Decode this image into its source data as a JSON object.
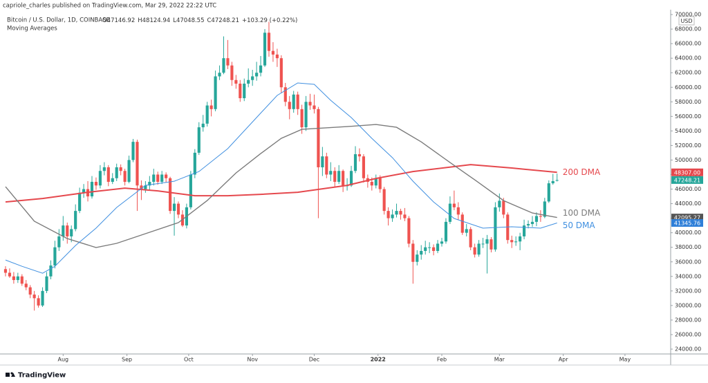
{
  "header": {
    "publisher": "capriole_charles published on TradingView.com, Mar 29, 2022 22:22 UTC"
  },
  "chart_data": {
    "type": "candlestick",
    "title": "Bitcoin / U.S. Dollar, 1D, COINBASE",
    "ohlc_legend": [
      "O47146.92",
      "H48124.94",
      "L47048.55",
      "C47248.21",
      "+103.29 (+0.22%)"
    ],
    "subtitle": "Moving Averages",
    "currency": "USD",
    "up_color": "#26a69a",
    "down_color": "#ef5350",
    "candles": [
      [
        35000,
        35400,
        34000,
        34500
      ],
      [
        34500,
        35100,
        33800,
        34000
      ],
      [
        34000,
        34600,
        33000,
        33500
      ],
      [
        33500,
        34500,
        33100,
        34000
      ],
      [
        34000,
        34300,
        32700,
        33000
      ],
      [
        33000,
        33500,
        32100,
        32500
      ],
      [
        32500,
        32800,
        31000,
        31500
      ],
      [
        31500,
        32000,
        29300,
        31000
      ],
      [
        31000,
        31400,
        29700,
        30000
      ],
      [
        30000,
        32500,
        29800,
        32000
      ],
      [
        32000,
        34600,
        31700,
        34000
      ],
      [
        34000,
        36200,
        33600,
        35500
      ],
      [
        35500,
        38900,
        35100,
        38000
      ],
      [
        38000,
        40500,
        37500,
        39500
      ],
      [
        39500,
        42300,
        38900,
        41000
      ],
      [
        41000,
        41400,
        38500,
        39500
      ],
      [
        39500,
        41000,
        38700,
        40500
      ],
      [
        40500,
        43900,
        40200,
        43000
      ],
      [
        43000,
        46200,
        42700,
        45500
      ],
      [
        45500,
        46700,
        44800,
        46000
      ],
      [
        46000,
        47100,
        44300,
        45000
      ],
      [
        45000,
        47800,
        44700,
        47000
      ],
      [
        47000,
        47600,
        45900,
        46500
      ],
      [
        46500,
        49300,
        46100,
        48500
      ],
      [
        48500,
        49700,
        47900,
        49000
      ],
      [
        49000,
        49300,
        46400,
        47000
      ],
      [
        47000,
        48200,
        46700,
        47500
      ],
      [
        47500,
        49500,
        47100,
        49000
      ],
      [
        49000,
        49400,
        47900,
        48500
      ],
      [
        48500,
        48800,
        46500,
        47000
      ],
      [
        47000,
        50600,
        46800,
        50000
      ],
      [
        50000,
        52900,
        49700,
        52500
      ],
      [
        52500,
        52800,
        43000,
        46500
      ],
      [
        46500,
        47200,
        44500,
        46000
      ],
      [
        46000,
        47100,
        45500,
        46500
      ],
      [
        46500,
        47800,
        45800,
        47000
      ],
      [
        47000,
        48800,
        46500,
        48000
      ],
      [
        48000,
        48400,
        46600,
        47000
      ],
      [
        47000,
        48500,
        46700,
        48000
      ],
      [
        48000,
        48300,
        46900,
        47500
      ],
      [
        47500,
        47700,
        42600,
        43000
      ],
      [
        43000,
        44900,
        39600,
        44000
      ],
      [
        44000,
        44300,
        42000,
        42500
      ],
      [
        42500,
        43100,
        40800,
        41000
      ],
      [
        41000,
        44000,
        40600,
        43500
      ],
      [
        43500,
        48500,
        43200,
        48000
      ],
      [
        48000,
        51500,
        47500,
        51000
      ],
      [
        51000,
        55200,
        50700,
        54500
      ],
      [
        54500,
        56200,
        53900,
        55000
      ],
      [
        55000,
        58000,
        54600,
        57500
      ],
      [
        57500,
        58300,
        56000,
        57000
      ],
      [
        57000,
        62300,
        56700,
        61500
      ],
      [
        61500,
        63000,
        61000,
        62000
      ],
      [
        62000,
        67000,
        61800,
        64000
      ],
      [
        64000,
        66500,
        62500,
        63000
      ],
      [
        63000,
        63500,
        60200,
        61000
      ],
      [
        61000,
        61700,
        59800,
        60500
      ],
      [
        60500,
        61000,
        58000,
        58500
      ],
      [
        58500,
        61200,
        58100,
        60500
      ],
      [
        60500,
        62600,
        60000,
        61000
      ],
      [
        61000,
        62400,
        60200,
        61500
      ],
      [
        61500,
        63500,
        60900,
        62000
      ],
      [
        62000,
        64300,
        61500,
        63000
      ],
      [
        63000,
        68000,
        62800,
        67500
      ],
      [
        67500,
        69000,
        64200,
        65000
      ],
      [
        65000,
        66200,
        63500,
        64500
      ],
      [
        64500,
        65300,
        62800,
        64000
      ],
      [
        64000,
        64400,
        59200,
        60000
      ],
      [
        60000,
        60600,
        57400,
        58000
      ],
      [
        58000,
        58800,
        55600,
        57000
      ],
      [
        57000,
        59500,
        56500,
        59000
      ],
      [
        59000,
        59400,
        56200,
        57000
      ],
      [
        57000,
        57600,
        53600,
        54500
      ],
      [
        54500,
        58800,
        54000,
        58000
      ],
      [
        58000,
        59100,
        56900,
        57500
      ],
      [
        57500,
        59000,
        56400,
        57000
      ],
      [
        57000,
        57300,
        42000,
        49000
      ],
      [
        49000,
        51800,
        47800,
        50500
      ],
      [
        50500,
        51000,
        47500,
        48000
      ],
      [
        48000,
        49700,
        47100,
        48500
      ],
      [
        48500,
        49000,
        46300,
        47000
      ],
      [
        47000,
        49300,
        46700,
        48500
      ],
      [
        48500,
        48700,
        45600,
        46500
      ],
      [
        46500,
        47500,
        45800,
        46500
      ],
      [
        46500,
        49200,
        46300,
        48500
      ],
      [
        48500,
        51900,
        48200,
        50800
      ],
      [
        50800,
        51600,
        49800,
        50500
      ],
      [
        50500,
        50800,
        46900,
        47500
      ],
      [
        47500,
        48000,
        46200,
        47000
      ],
      [
        47000,
        47600,
        45800,
        46500
      ],
      [
        46500,
        48000,
        46100,
        47500
      ],
      [
        47500,
        47900,
        45500,
        46000
      ],
      [
        46000,
        46300,
        42500,
        43000
      ],
      [
        43000,
        43500,
        41000,
        42000
      ],
      [
        42000,
        43200,
        41500,
        42500
      ],
      [
        42500,
        44000,
        42100,
        43000
      ],
      [
        43000,
        43300,
        41800,
        42500
      ],
      [
        42500,
        43400,
        41600,
        42000
      ],
      [
        42000,
        42300,
        38000,
        38500
      ],
      [
        38500,
        39000,
        33000,
        36000
      ],
      [
        36000,
        37600,
        35500,
        37000
      ],
      [
        37000,
        38300,
        36300,
        37500
      ],
      [
        37500,
        38900,
        37000,
        38000
      ],
      [
        38000,
        38700,
        37200,
        38000
      ],
      [
        38000,
        38400,
        36900,
        37500
      ],
      [
        37500,
        39000,
        37200,
        38500
      ],
      [
        38500,
        39300,
        38100,
        38800
      ],
      [
        38800,
        42000,
        38500,
        41500
      ],
      [
        41500,
        45000,
        41200,
        44000
      ],
      [
        44000,
        45800,
        43100,
        43500
      ],
      [
        43500,
        44200,
        41800,
        42500
      ],
      [
        42500,
        42800,
        39700,
        40000
      ],
      [
        40000,
        41200,
        39500,
        40500
      ],
      [
        40500,
        40800,
        37600,
        38000
      ],
      [
        38000,
        38500,
        36600,
        37000
      ],
      [
        37000,
        39000,
        36700,
        38500
      ],
      [
        38500,
        39300,
        37900,
        38500
      ],
      [
        38500,
        39700,
        34400,
        39100
      ],
      [
        39100,
        39400,
        37300,
        37700
      ],
      [
        37700,
        44200,
        37400,
        43500
      ],
      [
        43500,
        45400,
        42900,
        44400
      ],
      [
        44400,
        44800,
        42000,
        42500
      ],
      [
        42500,
        42800,
        38500,
        39000
      ],
      [
        39000,
        39600,
        37900,
        38700
      ],
      [
        38700,
        39500,
        38200,
        38800
      ],
      [
        38800,
        40000,
        37600,
        39500
      ],
      [
        39500,
        41800,
        39100,
        41000
      ],
      [
        41000,
        41700,
        40600,
        41200
      ],
      [
        41200,
        42300,
        40800,
        41500
      ],
      [
        41500,
        42800,
        40900,
        42300
      ],
      [
        42300,
        43100,
        41500,
        42200
      ],
      [
        42200,
        44800,
        42000,
        44300
      ],
      [
        44300,
        47200,
        44100,
        46800
      ],
      [
        46800,
        48100,
        46600,
        47100
      ],
      [
        47146.92,
        48124.94,
        47048.55,
        47248.21
      ]
    ],
    "series": [
      {
        "name": "200 DMA",
        "color": "#e5484d",
        "x": [
          0,
          9,
          20,
          29,
          37,
          46,
          54,
          62,
          71,
          83,
          90,
          99,
          113,
          123,
          134
        ],
        "values": [
          44240,
          44710,
          45570,
          46140,
          45760,
          45090,
          45090,
          45280,
          45570,
          46520,
          47470,
          48420,
          49370,
          48900,
          48307
        ]
      },
      {
        "name": "100 DMA",
        "color": "#7b7b7b",
        "x": [
          0,
          7,
          15,
          22,
          27,
          34,
          42,
          49,
          56,
          62,
          67,
          72,
          83,
          90,
          95,
          101,
          108,
          114,
          121,
          128,
          134
        ],
        "values": [
          46330,
          41580,
          39200,
          37970,
          38540,
          39870,
          41390,
          44430,
          48230,
          50890,
          52980,
          54220,
          54600,
          54880,
          54500,
          52500,
          49650,
          47280,
          44430,
          42720,
          42095.27
        ]
      },
      {
        "name": "50 DMA",
        "color": "#3f8fe0",
        "x": [
          0,
          4,
          9,
          12,
          17,
          22,
          27,
          34,
          41,
          47,
          54,
          61,
          66,
          71,
          75,
          79,
          84,
          89,
          94,
          99,
          104,
          109,
          116,
          123,
          130,
          134
        ],
        "values": [
          36250,
          35390,
          34440,
          35390,
          38250,
          40630,
          43480,
          46520,
          47090,
          48420,
          51560,
          55840,
          58880,
          60590,
          60400,
          58210,
          55840,
          52980,
          50320,
          47090,
          44240,
          41960,
          40630,
          40820,
          40630,
          41345.76
        ]
      }
    ],
    "price_labels": [
      {
        "value": 48307,
        "label": "48307.00",
        "color": "#e5484d"
      },
      {
        "value": 47248.21,
        "label": "47248.21",
        "color": "#26a69a"
      },
      {
        "value": 42095.27,
        "label": "42095.27",
        "color": "#555555"
      },
      {
        "value": 41345.76,
        "label": "41345.76",
        "color": "#2f7fd8"
      }
    ],
    "xlim": [
      -1.34,
      161.6
    ],
    "xticks": [
      {
        "value": 14,
        "label": "Aug"
      },
      {
        "value": 29.5,
        "label": "Sep"
      },
      {
        "value": 44.5,
        "label": "Oct"
      },
      {
        "value": 60,
        "label": "Nov"
      },
      {
        "value": 75,
        "label": "Dec"
      },
      {
        "value": 90.5,
        "label": "2022"
      },
      {
        "value": 106,
        "label": "Feb"
      },
      {
        "value": 120,
        "label": "Mar"
      },
      {
        "value": 135.5,
        "label": "Apr"
      },
      {
        "value": 150.5,
        "label": "May"
      }
    ],
    "ylim": [
      23335,
      72000
    ],
    "yticks": [
      {
        "value": 24000,
        "label": "24000.00"
      },
      {
        "value": 26000,
        "label": "26000.00"
      },
      {
        "value": 28000,
        "label": "28000.00"
      },
      {
        "value": 30000,
        "label": "30000.00"
      },
      {
        "value": 32000,
        "label": "32000.00"
      },
      {
        "value": 34000,
        "label": "34000.00"
      },
      {
        "value": 36000,
        "label": "36000.00"
      },
      {
        "value": 38000,
        "label": "38000.00"
      },
      {
        "value": 40000,
        "label": "40000.00"
      },
      {
        "value": 42000,
        "label": "42000.00"
      },
      {
        "value": 44000,
        "label": "44000.00"
      },
      {
        "value": 46000,
        "label": "46000.00"
      },
      {
        "value": 48000,
        "label": "48000.00"
      },
      {
        "value": 50000,
        "label": "50000.00"
      },
      {
        "value": 52000,
        "label": "52000.00"
      },
      {
        "value": 54000,
        "label": "54000.00"
      },
      {
        "value": 56000,
        "label": "56000.00"
      },
      {
        "value": 58000,
        "label": "58000.00"
      },
      {
        "value": 60000,
        "label": "60000.00"
      },
      {
        "value": 62000,
        "label": "62000.00"
      },
      {
        "value": 64000,
        "label": "64000.00"
      },
      {
        "value": 66000,
        "label": "66000.00"
      },
      {
        "value": 68000,
        "label": "68000.00"
      },
      {
        "value": 70000,
        "label": "70000.00"
      }
    ],
    "grid": false
  },
  "footer": {
    "brand": "TradingView"
  }
}
